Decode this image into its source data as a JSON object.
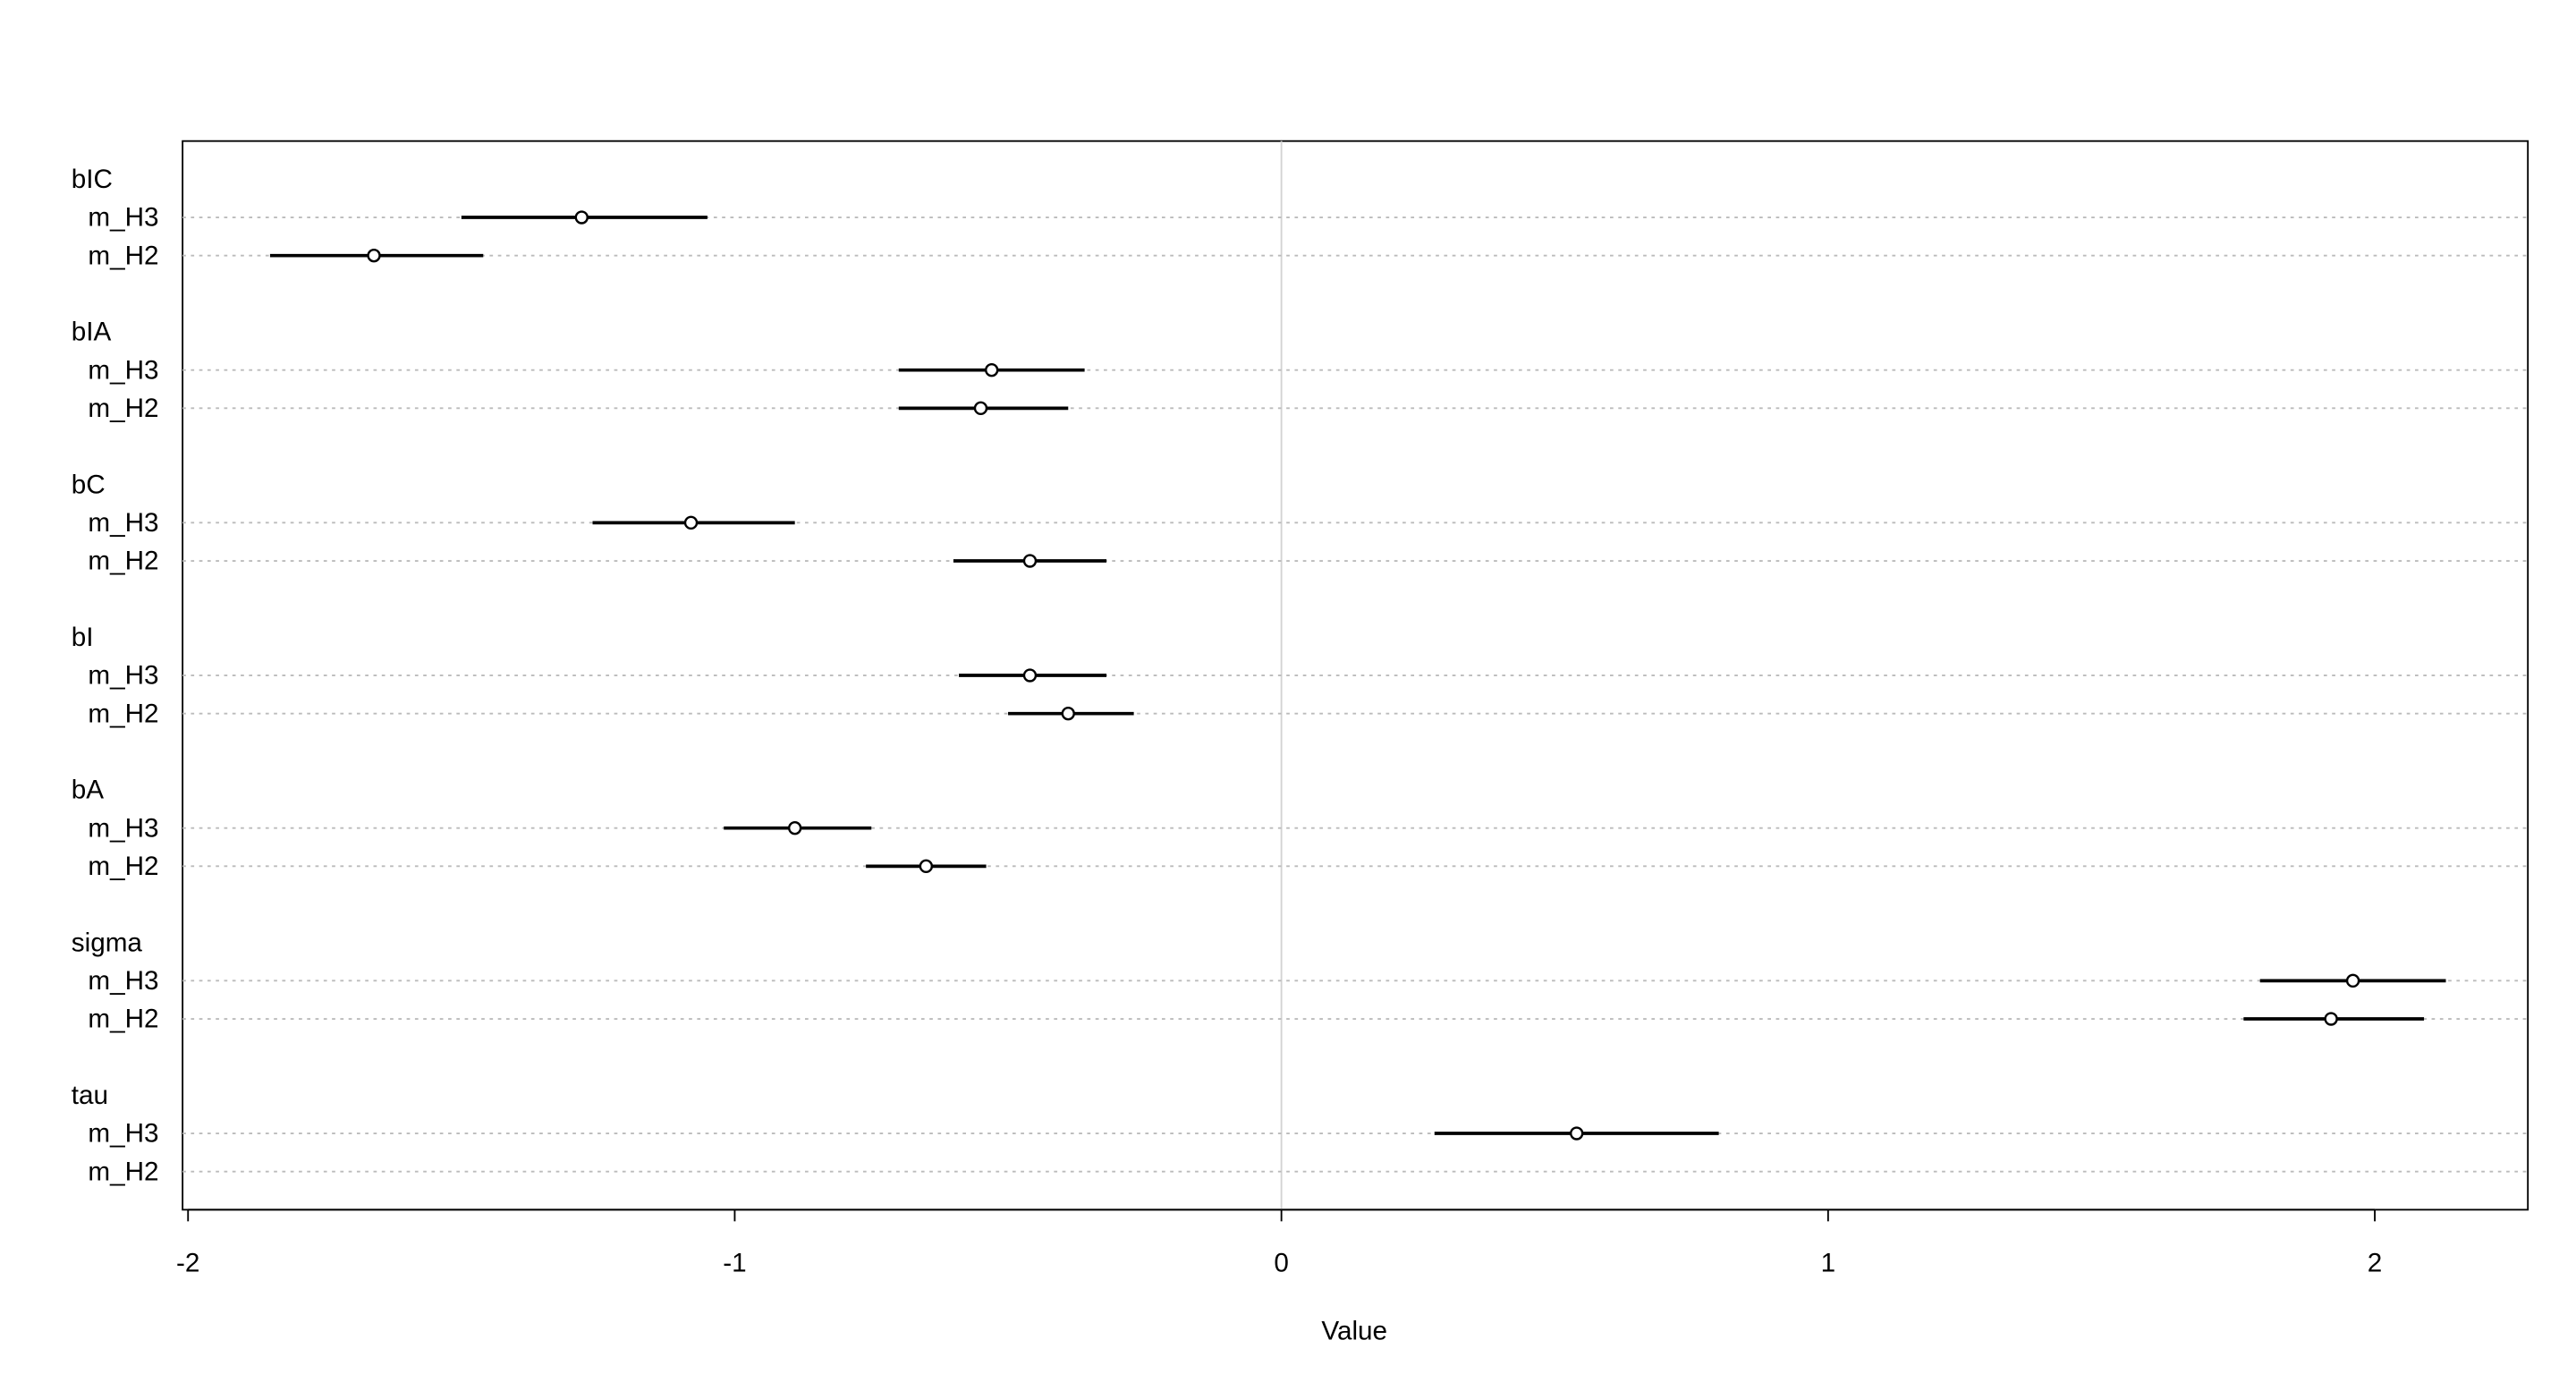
{
  "chart_data": {
    "type": "interval",
    "x_label": "Value",
    "categories": [
      "bIC",
      "bIA",
      "bC",
      "bI",
      "bA",
      "sigma",
      "tau"
    ],
    "series": [
      {
        "name": "m_H3",
        "color": "#000000",
        "values": [
          -1.28,
          -0.53,
          -1.08,
          -0.46,
          -0.89,
          1.96,
          0.54
        ],
        "lower": [
          -1.5,
          -0.7,
          -1.26,
          -0.59,
          -1.02,
          1.79,
          0.28
        ],
        "upper": [
          -1.05,
          -0.36,
          -0.89,
          -0.32,
          -0.75,
          2.13,
          0.8
        ]
      },
      {
        "name": "m_H2",
        "color": "#000000",
        "values": [
          -1.66,
          -0.55,
          -0.46,
          -0.39,
          -0.65,
          1.92,
          null
        ],
        "lower": [
          -1.85,
          -0.7,
          -0.6,
          -0.5,
          -0.76,
          1.76,
          null
        ],
        "upper": [
          -1.46,
          -0.39,
          -0.32,
          -0.27,
          -0.54,
          2.09,
          null
        ]
      }
    ],
    "xlim": [
      -2.01,
      2.28
    ],
    "xticks": [
      -2,
      -1,
      0,
      1,
      2
    ],
    "ref_line": 0,
    "grid": true
  }
}
